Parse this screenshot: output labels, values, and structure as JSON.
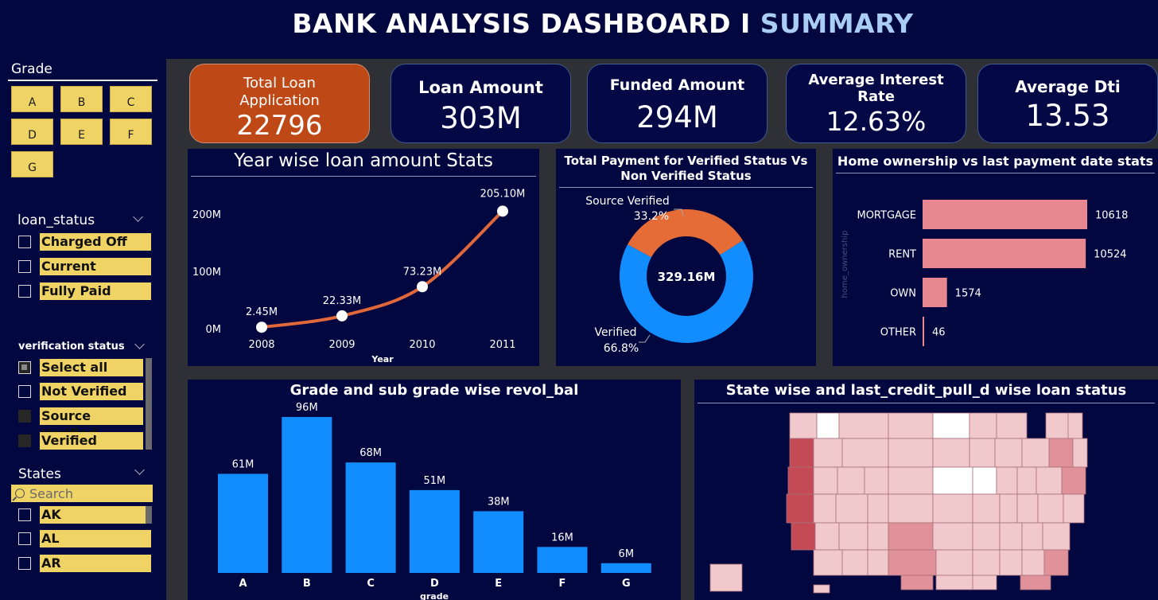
{
  "title": {
    "main": "BANK ANALYSIS DASHBOARD I",
    "accent": "SUMMARY"
  },
  "sidebar": {
    "grade": {
      "title": "Grade",
      "options": [
        "A",
        "B",
        "C",
        "D",
        "E",
        "F",
        "G"
      ]
    },
    "loan_status": {
      "title": "loan_status",
      "options": [
        "Charged Off",
        "Current",
        "Fully Paid"
      ]
    },
    "verification_status": {
      "title": "verification status",
      "options": [
        "Select all",
        "Not Verified",
        "Source Verified",
        "Verified"
      ]
    },
    "states": {
      "title": "States",
      "search_placeholder": "Search",
      "options": [
        "AK",
        "AL",
        "AR"
      ]
    }
  },
  "kpis": {
    "total_loan_application": {
      "label_line1": "Total Loan",
      "label_line2": "Application",
      "value": "22796"
    },
    "loan_amount": {
      "label": "Loan Amount",
      "value": "303M"
    },
    "funded_amount": {
      "label": "Funded Amount",
      "value": "294M"
    },
    "avg_interest_rate": {
      "label_line1": "Average Interest",
      "label_line2": "Rate",
      "value": "12.63%"
    },
    "avg_dti": {
      "label": "Average Dti",
      "value": "13.53"
    }
  },
  "charts": {
    "year_wise": {
      "title": "Year wise loan amount Stats",
      "chart_data": {
        "type": "line",
        "title": "Year wise loan amount Stats",
        "xlabel": "Year",
        "ylabel": "",
        "x": [
          "2008",
          "2009",
          "2010",
          "2011"
        ],
        "values": [
          2.45,
          22.33,
          73.23,
          205.1
        ],
        "data_labels": [
          "2.45M",
          "22.33M",
          "73.23M",
          "205.10M"
        ],
        "y_ticks": [
          "0M",
          "100M",
          "200M"
        ],
        "ylim": [
          0,
          200
        ],
        "color": "#e0683a",
        "grid": false
      }
    },
    "verified_payment": {
      "title_line1": "Total Payment for Verified Status Vs",
      "title_line2": "Non Verified Status",
      "chart_data": {
        "type": "pie",
        "donut": true,
        "center_label": "329.16M",
        "slices": [
          {
            "name": "Verified",
            "pct_label": "66.8%",
            "value": 66.8,
            "color": "#118dff"
          },
          {
            "name": "Source Verified",
            "pct_label": "33.2%",
            "value": 33.2,
            "color": "#e66c37"
          }
        ]
      }
    },
    "home_ownership": {
      "title": "Home ownership vs last payment date stats",
      "chart_data": {
        "type": "bar",
        "orientation": "horizontal",
        "ylabel": "home_ownership",
        "categories": [
          "MORTGAGE",
          "RENT",
          "OWN",
          "OTHER"
        ],
        "values": [
          10618,
          10524,
          1574,
          46
        ],
        "data_labels": [
          "10618",
          "10524",
          "1574",
          "46"
        ],
        "color": "#e8878f"
      }
    },
    "grade_revol": {
      "title": "Grade and sub grade wise revol_bal",
      "chart_data": {
        "type": "bar",
        "xlabel": "grade",
        "categories": [
          "A",
          "B",
          "C",
          "D",
          "E",
          "F",
          "G"
        ],
        "values": [
          61,
          96,
          68,
          51,
          38,
          16,
          6
        ],
        "data_labels": [
          "61M",
          "96M",
          "68M",
          "51M",
          "38M",
          "16M",
          "6M"
        ],
        "ylim": [
          0,
          96
        ],
        "color": "#118dff"
      }
    },
    "state_map": {
      "title": "State wise and last_credit_pull_d wise loan status",
      "map_colors": {
        "high": "#c44a55",
        "mid": "#e0919a",
        "low": "#f1c9cd",
        "none": "#ffffff"
      }
    }
  }
}
